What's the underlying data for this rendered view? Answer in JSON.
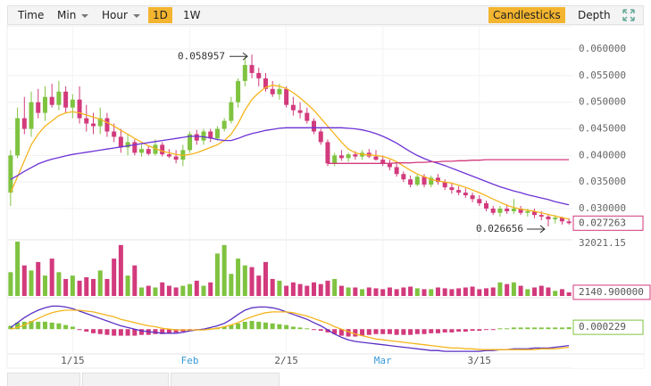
{
  "toolbar": {
    "intervals": [
      "Time",
      "Min",
      "Hour",
      "1D",
      "1W"
    ],
    "dropdowns": [
      "Min",
      "Hour"
    ],
    "active_interval": "1D",
    "views": [
      "Candlesticks",
      "Depth"
    ],
    "active_view": "Candlesticks"
  },
  "chart_data": {
    "type": "candlestick",
    "up_color": "#7fc340",
    "down_color": "#d23a7c",
    "grid": true,
    "candles": [
      [
        0.033,
        0.041,
        0.0305,
        0.04
      ],
      [
        0.04,
        0.049,
        0.0395,
        0.047
      ],
      [
        0.047,
        0.051,
        0.044,
        0.045
      ],
      [
        0.045,
        0.052,
        0.0435,
        0.05
      ],
      [
        0.05,
        0.0525,
        0.047,
        0.048
      ],
      [
        0.048,
        0.053,
        0.0465,
        0.051
      ],
      [
        0.051,
        0.0535,
        0.049,
        0.0495
      ],
      [
        0.0495,
        0.054,
        0.0485,
        0.052
      ],
      [
        0.052,
        0.053,
        0.048,
        0.049
      ],
      [
        0.049,
        0.0515,
        0.047,
        0.0505
      ],
      [
        0.0505,
        0.053,
        0.046,
        0.047
      ],
      [
        0.047,
        0.0495,
        0.0445,
        0.046
      ],
      [
        0.046,
        0.048,
        0.044,
        0.0455
      ],
      [
        0.0455,
        0.049,
        0.044,
        0.047
      ],
      [
        0.047,
        0.048,
        0.0435,
        0.0445
      ],
      [
        0.0445,
        0.046,
        0.0425,
        0.0435
      ],
      [
        0.0435,
        0.045,
        0.0405,
        0.0415
      ],
      [
        0.0415,
        0.044,
        0.04,
        0.0425
      ],
      [
        0.0425,
        0.043,
        0.04,
        0.0405
      ],
      [
        0.0405,
        0.042,
        0.0398,
        0.0412
      ],
      [
        0.0412,
        0.0418,
        0.04,
        0.0403
      ],
      [
        0.0403,
        0.043,
        0.04,
        0.042
      ],
      [
        0.042,
        0.0425,
        0.0398,
        0.0402
      ],
      [
        0.0402,
        0.0412,
        0.0395,
        0.0398
      ],
      [
        0.0398,
        0.041,
        0.0385,
        0.0392
      ],
      [
        0.0392,
        0.042,
        0.038,
        0.041
      ],
      [
        0.041,
        0.0445,
        0.0405,
        0.044
      ],
      [
        0.044,
        0.0448,
        0.042,
        0.0428
      ],
      [
        0.0428,
        0.045,
        0.042,
        0.0445
      ],
      [
        0.0445,
        0.045,
        0.0425,
        0.0432
      ],
      [
        0.0432,
        0.0455,
        0.0428,
        0.045
      ],
      [
        0.045,
        0.047,
        0.0445,
        0.0465
      ],
      [
        0.0465,
        0.051,
        0.046,
        0.05
      ],
      [
        0.05,
        0.0545,
        0.049,
        0.054
      ],
      [
        0.054,
        0.0585,
        0.053,
        0.057
      ],
      [
        0.057,
        0.058957,
        0.0545,
        0.0555
      ],
      [
        0.0555,
        0.0565,
        0.053,
        0.0545
      ],
      [
        0.0545,
        0.0555,
        0.052,
        0.0525
      ],
      [
        0.0525,
        0.054,
        0.051,
        0.0515
      ],
      [
        0.0515,
        0.0535,
        0.0505,
        0.0525
      ],
      [
        0.0525,
        0.053,
        0.049,
        0.0495
      ],
      [
        0.0495,
        0.051,
        0.0475,
        0.0485
      ],
      [
        0.0485,
        0.05,
        0.047,
        0.048
      ],
      [
        0.048,
        0.049,
        0.046,
        0.0465
      ],
      [
        0.0465,
        0.047,
        0.044,
        0.0445
      ],
      [
        0.0445,
        0.045,
        0.042,
        0.0425
      ],
      [
        0.0425,
        0.043,
        0.038,
        0.0385
      ],
      [
        0.0385,
        0.0405,
        0.038,
        0.04
      ],
      [
        0.04,
        0.041,
        0.039,
        0.0395
      ],
      [
        0.0395,
        0.0405,
        0.0388,
        0.0402
      ],
      [
        0.0402,
        0.0408,
        0.0392,
        0.0398
      ],
      [
        0.0398,
        0.041,
        0.0392,
        0.0405
      ],
      [
        0.0405,
        0.0412,
        0.0395,
        0.0398
      ],
      [
        0.0398,
        0.041,
        0.039,
        0.0392
      ],
      [
        0.0392,
        0.04,
        0.038,
        0.0385
      ],
      [
        0.0385,
        0.0392,
        0.0372,
        0.0378
      ],
      [
        0.0378,
        0.0385,
        0.036,
        0.0365
      ],
      [
        0.0365,
        0.037,
        0.035,
        0.0355
      ],
      [
        0.0355,
        0.0362,
        0.034,
        0.0345
      ],
      [
        0.0345,
        0.0365,
        0.0342,
        0.036
      ],
      [
        0.036,
        0.0365,
        0.034,
        0.0345
      ],
      [
        0.0345,
        0.0362,
        0.034,
        0.0358
      ],
      [
        0.0358,
        0.0365,
        0.0345,
        0.035
      ],
      [
        0.035,
        0.0355,
        0.0335,
        0.034
      ],
      [
        0.034,
        0.0348,
        0.0328,
        0.0335
      ],
      [
        0.0335,
        0.0342,
        0.0325,
        0.033
      ],
      [
        0.033,
        0.0338,
        0.032,
        0.0325
      ],
      [
        0.0325,
        0.033,
        0.0312,
        0.0318
      ],
      [
        0.0318,
        0.0325,
        0.0305,
        0.031
      ],
      [
        0.031,
        0.0315,
        0.0295,
        0.03
      ],
      [
        0.03,
        0.0305,
        0.0288,
        0.0292
      ],
      [
        0.0292,
        0.0305,
        0.0285,
        0.03
      ],
      [
        0.03,
        0.0308,
        0.029,
        0.0295
      ],
      [
        0.0295,
        0.0318,
        0.029,
        0.03
      ],
      [
        0.03,
        0.0305,
        0.0288,
        0.0292
      ],
      [
        0.0292,
        0.03,
        0.0285,
        0.0295
      ],
      [
        0.0295,
        0.03,
        0.0282,
        0.0288
      ],
      [
        0.0288,
        0.0295,
        0.0278,
        0.0285
      ],
      [
        0.0285,
        0.029,
        0.026656,
        0.028
      ],
      [
        0.028,
        0.0288,
        0.0272,
        0.0283
      ],
      [
        0.0283,
        0.0285,
        0.027,
        0.0276
      ],
      [
        0.0276,
        0.0282,
        0.027,
        0.027263
      ]
    ],
    "xlim": [
      -0.5,
      81.5
    ],
    "xticks": [
      {
        "value": 9,
        "label": "1/15",
        "color": "#555555"
      },
      {
        "value": 26,
        "label": "Feb",
        "color": "#3a9ad9"
      },
      {
        "value": 40,
        "label": "2/15",
        "color": "#555555"
      },
      {
        "value": 54,
        "label": "Mar",
        "color": "#3a9ad9"
      },
      {
        "value": 68,
        "label": "3/15",
        "color": "#555555"
      }
    ],
    "ylim": [
      0.0243,
      0.0642
    ],
    "yticks": [
      {
        "value": 0.03,
        "label": "0.030000"
      },
      {
        "value": 0.035,
        "label": "0.035000"
      },
      {
        "value": 0.04,
        "label": "0.040000"
      },
      {
        "value": 0.045,
        "label": "0.045000"
      },
      {
        "value": 0.05,
        "label": "0.050000"
      },
      {
        "value": 0.055,
        "label": "0.055000"
      },
      {
        "value": 0.06,
        "label": "0.060000"
      }
    ],
    "series": [
      {
        "color": "#f5b41c",
        "values": [
          0.033,
          0.036,
          0.039,
          0.042,
          0.044,
          0.0455,
          0.0465,
          0.0475,
          0.048,
          0.0482,
          0.048,
          0.0476,
          0.0472,
          0.0468,
          0.0462,
          0.0455,
          0.0447,
          0.044,
          0.0432,
          0.0425,
          0.0418,
          0.0413,
          0.0408,
          0.0405,
          0.0402,
          0.04,
          0.0402,
          0.0405,
          0.041,
          0.0415,
          0.042,
          0.0428,
          0.044,
          0.046,
          0.0485,
          0.0505,
          0.0518,
          0.0528,
          0.0532,
          0.053,
          0.0526,
          0.0518,
          0.0508,
          0.0497,
          0.0485,
          0.047,
          0.0455,
          0.044,
          0.0425,
          0.0412,
          0.0405,
          0.0402,
          0.0401,
          0.04,
          0.0398,
          0.0394,
          0.0388,
          0.038,
          0.0372,
          0.0365,
          0.036,
          0.0355,
          0.0352,
          0.035,
          0.0348,
          0.0344,
          0.034,
          0.0335,
          0.033,
          0.0324,
          0.0318,
          0.0312,
          0.0306,
          0.0302,
          0.0299,
          0.0297,
          0.0295,
          0.0292,
          0.0289,
          0.0286,
          0.0283,
          0.028
        ]
      },
      {
        "color": "#6d33d6",
        "values": [
          0.0355,
          0.0362,
          0.037,
          0.0377,
          0.0384,
          0.0389,
          0.0393,
          0.0396,
          0.0399,
          0.0402,
          0.0404,
          0.0406,
          0.0408,
          0.041,
          0.0412,
          0.0414,
          0.0416,
          0.0418,
          0.042,
          0.0422,
          0.0424,
          0.0426,
          0.0428,
          0.043,
          0.0432,
          0.0434,
          0.0436,
          0.0436,
          0.0435,
          0.0433,
          0.043,
          0.0428,
          0.0428,
          0.0432,
          0.0437,
          0.0441,
          0.0444,
          0.0447,
          0.0449,
          0.0451,
          0.0452,
          0.0452,
          0.0452,
          0.0452,
          0.0452,
          0.0452,
          0.0452,
          0.0452,
          0.0452,
          0.0451,
          0.045,
          0.0448,
          0.0445,
          0.0441,
          0.0436,
          0.043,
          0.0423,
          0.0415,
          0.0407,
          0.04,
          0.0394,
          0.0389,
          0.0385,
          0.0381,
          0.0376,
          0.0371,
          0.0366,
          0.0361,
          0.0356,
          0.0351,
          0.0346,
          0.0341,
          0.0337,
          0.0333,
          0.033,
          0.0326,
          0.0323,
          0.032,
          0.0317,
          0.0313,
          0.031,
          0.0307
        ]
      },
      {
        "color": "#d23a7c",
        "values": [
          null,
          null,
          null,
          null,
          null,
          null,
          null,
          null,
          null,
          null,
          null,
          null,
          null,
          null,
          null,
          null,
          null,
          null,
          null,
          null,
          null,
          null,
          null,
          null,
          null,
          null,
          null,
          null,
          null,
          null,
          null,
          null,
          null,
          null,
          null,
          null,
          null,
          null,
          null,
          null,
          null,
          null,
          null,
          null,
          null,
          null,
          0.0385,
          0.0385,
          0.0385,
          0.0385,
          0.0385,
          0.0385,
          0.0385,
          0.0385,
          0.0385,
          0.0385,
          0.0386,
          0.0386,
          0.0386,
          0.0387,
          0.0387,
          0.0388,
          0.0388,
          0.0389,
          0.0389,
          0.039,
          0.039,
          0.0391,
          0.0391,
          0.0392,
          0.0392,
          0.0392,
          0.0392,
          0.0392,
          0.0392,
          0.0392,
          0.0392,
          0.0392,
          0.0392,
          0.0392,
          0.0392,
          0.0392
        ]
      }
    ],
    "volume": {
      "values": [
        14000,
        32021.15,
        18000,
        15000,
        20000,
        12000,
        22000,
        14000,
        10000,
        12000,
        9000,
        11000,
        10000,
        15000,
        10000,
        22000,
        30000,
        12000,
        18000,
        5000,
        6000,
        5000,
        8000,
        6000,
        5000,
        6000,
        7000,
        9000,
        6000,
        8000,
        25000,
        30000,
        13000,
        22000,
        18000,
        17000,
        12000,
        20000,
        10000,
        9000,
        6000,
        8000,
        7000,
        6000,
        8000,
        7000,
        9000,
        10000,
        6000,
        5000,
        5000,
        4000,
        5000,
        4500,
        4000,
        5000,
        4000,
        5000,
        5500,
        4500,
        4000,
        4000,
        5000,
        4500,
        4000,
        4500,
        5000,
        5500,
        4000,
        4500,
        5000,
        8000,
        7000,
        8000,
        6000,
        4000,
        5000,
        6000,
        5000,
        3000,
        4000,
        2140.9
      ],
      "last_label": "2140.900000",
      "ylim": [
        0,
        32021.15
      ],
      "yticks": [
        32021.15
      ]
    },
    "macd": {
      "ylim": [
        -0.0028,
        0.0035
      ],
      "histogram": [
        0.0004,
        0.0008,
        0.0009,
        0.001,
        0.0009,
        0.0009,
        0.0008,
        0.0007,
        0.0005,
        0.0003,
        -0.0001,
        -0.0003,
        -0.0005,
        -0.0006,
        -0.0007,
        -0.0008,
        -0.0008,
        -0.0008,
        -0.0008,
        -0.0007,
        -0.0007,
        -0.0006,
        -0.0006,
        -0.0005,
        -0.0004,
        -0.0003,
        -0.0002,
        -0.0001,
        -0.0001,
        0.0001,
        0.0002,
        0.0003,
        0.0005,
        0.0007,
        0.0009,
        0.001,
        0.0009,
        0.0008,
        0.0007,
        0.0006,
        0.0005,
        0.0003,
        0.0002,
        0.0001,
        -0.0001,
        -0.0002,
        -0.0004,
        -0.0006,
        -0.0008,
        -0.0009,
        -0.0009,
        -0.0008,
        -0.0007,
        -0.0006,
        -0.0006,
        -0.0006,
        -0.0007,
        -0.0007,
        -0.0007,
        -0.0006,
        -0.0006,
        -0.0005,
        -0.0005,
        -0.0004,
        -0.0004,
        -0.0003,
        -0.0003,
        -0.0002,
        -0.0002,
        -0.0001,
        -0.0001,
        0.0001,
        0.0001,
        0.0002,
        0.0002,
        0.0002,
        0.0002,
        0.0002,
        0.0002,
        0.0002,
        0.0002,
        0.000229
      ],
      "lines": [
        {
          "color": "#5a2fc4",
          "values": [
            0.0002,
            0.0008,
            0.0014,
            0.0019,
            0.0023,
            0.0026,
            0.0028,
            0.0028,
            0.0027,
            0.0025,
            0.0022,
            0.0019,
            0.0016,
            0.0013,
            0.001,
            0.0007,
            0.0004,
            0.0002,
            0.0,
            -0.0002,
            -0.0003,
            -0.0004,
            -0.0005,
            -0.0005,
            -0.0005,
            -0.0004,
            -0.0002,
            -0.0001,
            0.0,
            0.0002,
            0.0004,
            0.0007,
            0.0012,
            0.0018,
            0.0023,
            0.0026,
            0.0027,
            0.0027,
            0.0026,
            0.0024,
            0.0021,
            0.0018,
            0.0015,
            0.0012,
            0.0008,
            0.0004,
            -0.0001,
            -0.0006,
            -0.001,
            -0.0013,
            -0.0015,
            -0.0016,
            -0.0017,
            -0.0018,
            -0.0019,
            -0.002,
            -0.0021,
            -0.0022,
            -0.0023,
            -0.0024,
            -0.0025,
            -0.0026,
            -0.0026,
            -0.0027,
            -0.0027,
            -0.0027,
            -0.0027,
            -0.0027,
            -0.0027,
            -0.0026,
            -0.0026,
            -0.0025,
            -0.0025,
            -0.0024,
            -0.0024,
            -0.0024,
            -0.0023,
            -0.0023,
            -0.0023,
            -0.0022,
            -0.0021,
            -0.002
          ]
        },
        {
          "color": "#f5b41c",
          "values": [
            0.0,
            0.0002,
            0.0005,
            0.0009,
            0.0013,
            0.0017,
            0.002,
            0.0022,
            0.0023,
            0.0023,
            0.0023,
            0.0022,
            0.0021,
            0.0019,
            0.0017,
            0.0015,
            0.0012,
            0.001,
            0.0008,
            0.0006,
            0.0004,
            0.0003,
            0.0001,
            0.0,
            -0.0001,
            -0.0001,
            -0.0001,
            -0.0001,
            -0.0001,
            0.0,
            0.0001,
            0.0003,
            0.0005,
            0.0008,
            0.0012,
            0.0015,
            0.0018,
            0.002,
            0.0021,
            0.0021,
            0.0021,
            0.002,
            0.0018,
            0.0016,
            0.0013,
            0.001,
            0.0007,
            0.0003,
            0.0,
            -0.0003,
            -0.0006,
            -0.0008,
            -0.001,
            -0.0012,
            -0.0013,
            -0.0014,
            -0.0015,
            -0.0016,
            -0.0017,
            -0.0018,
            -0.0019,
            -0.002,
            -0.0021,
            -0.0022,
            -0.0023,
            -0.0023,
            -0.0024,
            -0.0024,
            -0.0025,
            -0.0025,
            -0.0025,
            -0.0025,
            -0.0025,
            -0.0025,
            -0.0025,
            -0.0025,
            -0.0025,
            -0.0024,
            -0.0024,
            -0.0024,
            -0.0023,
            -0.0022
          ]
        }
      ]
    }
  }
}
